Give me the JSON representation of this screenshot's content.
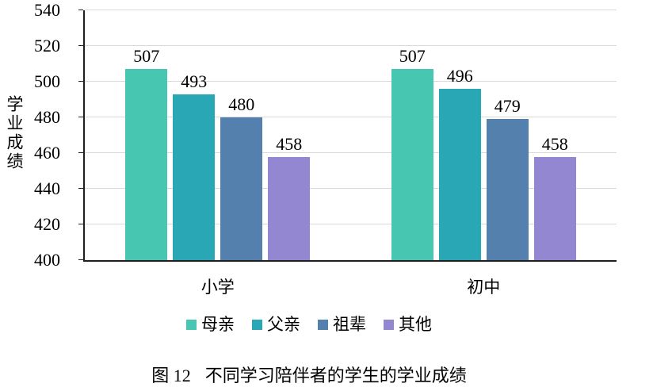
{
  "figure": {
    "caption_prefix": "图 12",
    "caption_title": "不同学习陪伴者的学生的学业成绩"
  },
  "chart_data": {
    "type": "bar",
    "title": "图 12 不同学习陪伴者的学生的学业成绩",
    "categories": [
      "小学",
      "初中"
    ],
    "series": [
      {
        "name": "母亲",
        "color": "#47C7B2",
        "values": [
          507,
          507
        ]
      },
      {
        "name": "父亲",
        "color": "#2AA7B5",
        "values": [
          493,
          496
        ]
      },
      {
        "name": "祖辈",
        "color": "#5380AD",
        "values": [
          480,
          479
        ]
      },
      {
        "name": "其他",
        "color": "#9287D0",
        "values": [
          458,
          458
        ]
      }
    ],
    "ylabel": "学业成绩",
    "xlabel": "",
    "ylim": [
      400,
      540
    ],
    "yticks": [
      400,
      420,
      440,
      460,
      480,
      500,
      520,
      540
    ],
    "grid": true,
    "data_labels": true,
    "legend_position": "bottom",
    "colors": {
      "gridline": "#D9D9D9",
      "axis": "#1F1F1F",
      "text": "#000000"
    }
  }
}
